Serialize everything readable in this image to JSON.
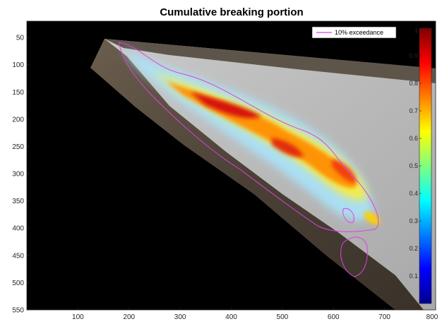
{
  "chart_data": {
    "type": "heatmap",
    "title": "Cumulative breaking portion",
    "xlabel": "",
    "ylabel": "",
    "xlim": [
      0,
      800
    ],
    "ylim": [
      550,
      20
    ],
    "y_reversed": true,
    "x_ticks": [
      "100",
      "200",
      "300",
      "400",
      "500",
      "600",
      "700",
      "800"
    ],
    "y_ticks": [
      "50",
      "100",
      "150",
      "200",
      "250",
      "300",
      "350",
      "400",
      "450",
      "500",
      "550"
    ],
    "colorbar": {
      "colormap": "jet",
      "range": [
        0,
        1
      ],
      "ticks": [
        "0.1",
        "0.2",
        "0.3",
        "0.4",
        "0.5",
        "0.6",
        "0.7",
        "0.8",
        "0.9",
        "1"
      ]
    },
    "legend": {
      "placement": "top-right",
      "entries": [
        {
          "label": "10% exceedance",
          "color": "#e040e0"
        }
      ]
    },
    "background_color": "#000000",
    "breaking_band_color_peak": "#d41010"
  }
}
